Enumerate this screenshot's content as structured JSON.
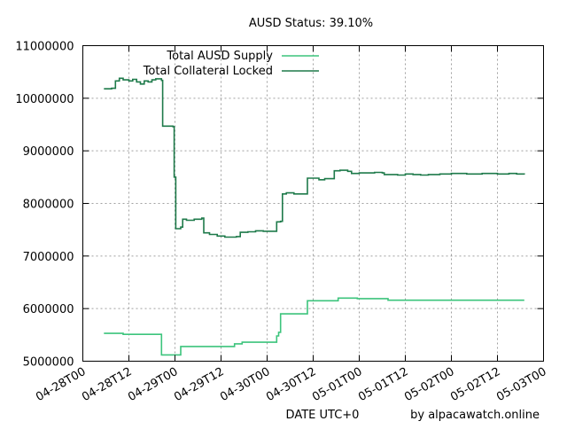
{
  "chart_data": {
    "type": "line",
    "title": "AUSD Status: 39.10%",
    "xlabel": "DATE UTC+0",
    "credit": "by alpacawatch.online",
    "ylabel": "",
    "ylim": [
      5000000,
      11000000
    ],
    "xlim_hours": [
      0,
      120
    ],
    "x_tick_labels": [
      "04-28T00",
      "04-28T12",
      "04-29T00",
      "04-29T12",
      "04-30T00",
      "04-30T12",
      "05-01T00",
      "05-01T12",
      "05-02T00",
      "05-02T12",
      "05-03T00"
    ],
    "y_tick_labels": [
      "5000000",
      "6000000",
      "7000000",
      "8000000",
      "9000000",
      "10000000",
      "11000000"
    ],
    "y_tick_values": [
      5000000,
      6000000,
      7000000,
      8000000,
      9000000,
      10000000,
      11000000
    ],
    "grid": true,
    "legend_position": "top-left",
    "series": [
      {
        "name": "Total AUSD Supply",
        "color": "#3cc47c",
        "points": [
          [
            5.5,
            5530000
          ],
          [
            10,
            5530000
          ],
          [
            10.5,
            5510000
          ],
          [
            20,
            5510000
          ],
          [
            20.5,
            5120000
          ],
          [
            25,
            5120000
          ],
          [
            25.5,
            5280000
          ],
          [
            39,
            5280000
          ],
          [
            39.5,
            5330000
          ],
          [
            41,
            5330000
          ],
          [
            41.5,
            5360000
          ],
          [
            50,
            5360000
          ],
          [
            50.5,
            5480000
          ],
          [
            51,
            5550000
          ],
          [
            51.5,
            5900000
          ],
          [
            58,
            5900000
          ],
          [
            58.5,
            6150000
          ],
          [
            66,
            6150000
          ],
          [
            66.5,
            6200000
          ],
          [
            71,
            6200000
          ],
          [
            71.5,
            6190000
          ],
          [
            79,
            6190000
          ],
          [
            79.5,
            6160000
          ],
          [
            115,
            6160000
          ]
        ]
      },
      {
        "name": "Total Collateral Locked",
        "color": "#1e7a4a",
        "points": [
          [
            5.5,
            10180000
          ],
          [
            7.5,
            10190000
          ],
          [
            8.5,
            10330000
          ],
          [
            9.5,
            10380000
          ],
          [
            10.5,
            10350000
          ],
          [
            12,
            10330000
          ],
          [
            13,
            10360000
          ],
          [
            14,
            10310000
          ],
          [
            15,
            10270000
          ],
          [
            16,
            10330000
          ],
          [
            17,
            10310000
          ],
          [
            18,
            10350000
          ],
          [
            19,
            10370000
          ],
          [
            20.5,
            10340000
          ],
          [
            20.8,
            9470000
          ],
          [
            23.5,
            9460000
          ],
          [
            23.8,
            8500000
          ],
          [
            24.2,
            7520000
          ],
          [
            25.5,
            7550000
          ],
          [
            26,
            7700000
          ],
          [
            27,
            7680000
          ],
          [
            29,
            7700000
          ],
          [
            31,
            7720000
          ],
          [
            31.5,
            7440000
          ],
          [
            33,
            7410000
          ],
          [
            35,
            7380000
          ],
          [
            37,
            7360000
          ],
          [
            40,
            7370000
          ],
          [
            41,
            7450000
          ],
          [
            43,
            7460000
          ],
          [
            45,
            7480000
          ],
          [
            47,
            7470000
          ],
          [
            50,
            7470000
          ],
          [
            50.5,
            7650000
          ],
          [
            51.5,
            7660000
          ],
          [
            52,
            8180000
          ],
          [
            53,
            8200000
          ],
          [
            55,
            8180000
          ],
          [
            58,
            8180000
          ],
          [
            58.5,
            8480000
          ],
          [
            61,
            8480000
          ],
          [
            61.5,
            8450000
          ],
          [
            63,
            8470000
          ],
          [
            65,
            8470000
          ],
          [
            65.5,
            8620000
          ],
          [
            67,
            8630000
          ],
          [
            69,
            8610000
          ],
          [
            70,
            8570000
          ],
          [
            72,
            8580000
          ],
          [
            76,
            8590000
          ],
          [
            78,
            8580000
          ],
          [
            78.5,
            8550000
          ],
          [
            82,
            8540000
          ],
          [
            84,
            8560000
          ],
          [
            86,
            8550000
          ],
          [
            88,
            8540000
          ],
          [
            90,
            8550000
          ],
          [
            93,
            8560000
          ],
          [
            96,
            8570000
          ],
          [
            100,
            8560000
          ],
          [
            104,
            8570000
          ],
          [
            108,
            8560000
          ],
          [
            111,
            8570000
          ],
          [
            113,
            8560000
          ],
          [
            115,
            8550000
          ]
        ]
      }
    ]
  }
}
